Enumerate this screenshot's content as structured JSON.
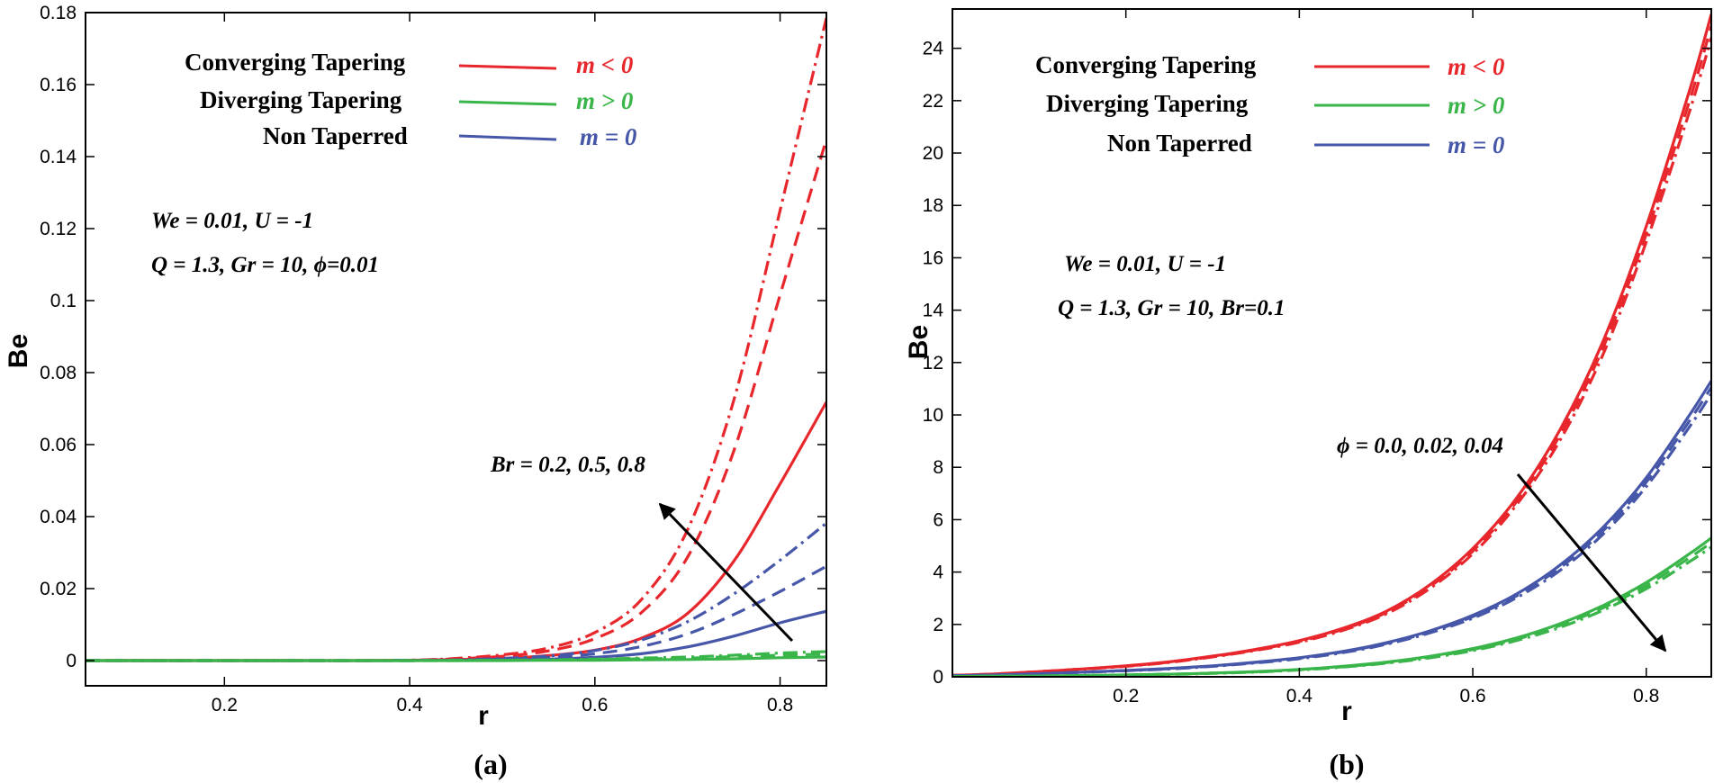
{
  "colors": {
    "red": "#e8272d",
    "green": "#39b54a",
    "blue": "#4656a8"
  },
  "chart_data": [
    {
      "type": "line",
      "panel": "(a)",
      "xlabel": "r",
      "ylabel": "Be",
      "xlim": [
        0.05,
        0.85
      ],
      "ylim": [
        -0.007,
        0.18
      ],
      "xticks": [
        "0.2",
        "0.4",
        "0.6",
        "0.8"
      ],
      "yticks": [
        "0",
        "0.02",
        "0.04",
        "0.06",
        "0.08",
        "0.1",
        "0.12",
        "0.14",
        "0.16",
        "0.18"
      ],
      "legend": [
        {
          "label": "Converging Tapering",
          "m": "m < 0",
          "color": "#e8272d"
        },
        {
          "label": "Diverging Tapering",
          "m": "m > 0",
          "color": "#39b54a"
        },
        {
          "label": "Non Taperred",
          "m": "m = 0",
          "color": "#4656a8"
        }
      ],
      "params": [
        "We = 0.01, U = -1",
        "Q = 1.3, Gr = 10, ϕ=0.01"
      ],
      "arrow_label": "Br = 0.2, 0.5, 0.8",
      "x": [
        0.05,
        0.1,
        0.15,
        0.2,
        0.25,
        0.3,
        0.35,
        0.4,
        0.45,
        0.5,
        0.55,
        0.6,
        0.65,
        0.7,
        0.75,
        0.8,
        0.85
      ],
      "series": [
        {
          "name": "Converging Tapering, Br = 0.2",
          "color": "#e8272d",
          "dash": "solid",
          "values": [
            0,
            0,
            0,
            0,
            0,
            0,
            0,
            0.0001,
            0.0003,
            0.0006,
            0.0014,
            0.0029,
            0.0062,
            0.0131,
            0.0276,
            0.0491,
            0.0718
          ]
        },
        {
          "name": "Converging Tapering, Br = 0.5",
          "color": "#e8272d",
          "dash": "dash",
          "values": [
            0,
            0,
            0,
            0,
            0,
            0,
            0,
            0.0001,
            0.0005,
            0.0012,
            0.0027,
            0.0061,
            0.0133,
            0.0287,
            0.0582,
            0.1016,
            0.1448
          ]
        },
        {
          "name": "Converging Tapering, Br = 0.8",
          "color": "#e8272d",
          "dash": "dashdot",
          "values": [
            0,
            0,
            0,
            0,
            0,
            0,
            0,
            0.0001,
            0.0006,
            0.0016,
            0.0035,
            0.0078,
            0.0169,
            0.0363,
            0.0723,
            0.1251,
            0.1785
          ]
        },
        {
          "name": "Non Taperred, Br = 0.2",
          "color": "#4656a8",
          "dash": "solid",
          "values": [
            0,
            0,
            0,
            0,
            0,
            0,
            0,
            0,
            0.0001,
            0.0002,
            0.0004,
            0.0009,
            0.0019,
            0.0038,
            0.0068,
            0.0105,
            0.0137
          ]
        },
        {
          "name": "Non Taperred, Br = 0.5",
          "color": "#4656a8",
          "dash": "dash",
          "values": [
            0,
            0,
            0,
            0,
            0,
            0,
            0,
            0,
            0.0001,
            0.0004,
            0.0009,
            0.0019,
            0.0039,
            0.0074,
            0.0128,
            0.0192,
            0.0262
          ]
        },
        {
          "name": "Non Taperred, Br = 0.8",
          "color": "#4656a8",
          "dash": "dashdot",
          "values": [
            0,
            0,
            0,
            0,
            0,
            0,
            0,
            0.0001,
            0.0002,
            0.0006,
            0.0013,
            0.0028,
            0.0057,
            0.0108,
            0.0185,
            0.0279,
            0.0382
          ]
        },
        {
          "name": "Diverging Tapering, Br = 0.2",
          "color": "#39b54a",
          "dash": "solid",
          "values": [
            0,
            0,
            0,
            0,
            0,
            0,
            0,
            0,
            0,
            0,
            0.0001,
            0.0001,
            0.0002,
            0.0003,
            0.0005,
            0.0008,
            0.001
          ]
        },
        {
          "name": "Diverging Tapering, Br = 0.5",
          "color": "#39b54a",
          "dash": "dash",
          "values": [
            0,
            0,
            0,
            0,
            0,
            0,
            0,
            0,
            0,
            0.0001,
            0.0002,
            0.0003,
            0.0005,
            0.0007,
            0.0011,
            0.0015,
            0.0018
          ]
        },
        {
          "name": "Diverging Tapering, Br = 0.8",
          "color": "#39b54a",
          "dash": "dashdot",
          "values": [
            0,
            0,
            0,
            0,
            0,
            0,
            0,
            0,
            0.0001,
            0.0001,
            0.0002,
            0.0004,
            0.0007,
            0.001,
            0.0015,
            0.0021,
            0.0025
          ]
        }
      ]
    },
    {
      "type": "line",
      "panel": "(b)",
      "xlabel": "r",
      "ylabel": "Be",
      "xlim": [
        0,
        0.875
      ],
      "ylim": [
        0,
        25.5
      ],
      "xticks": [
        "0.2",
        "0.4",
        "0.6",
        "0.8"
      ],
      "yticks": [
        "0",
        "2",
        "4",
        "6",
        "8",
        "10",
        "12",
        "14",
        "16",
        "18",
        "20",
        "22",
        "24"
      ],
      "legend": [
        {
          "label": "Converging Tapering",
          "m": "m < 0",
          "color": "#e8272d"
        },
        {
          "label": "Diverging Tapering",
          "m": "m > 0",
          "color": "#39b54a"
        },
        {
          "label": "Non Taperred",
          "m": "m = 0",
          "color": "#4656a8"
        }
      ],
      "params": [
        "We = 0.01, U = -1",
        "Q = 1.3, Gr = 10, Br=0.1"
      ],
      "arrow_label": "ϕ = 0.0, 0.02, 0.04",
      "x": [
        0,
        0.05,
        0.1,
        0.15,
        0.2,
        0.25,
        0.3,
        0.35,
        0.4,
        0.45,
        0.5,
        0.55,
        0.6,
        0.65,
        0.7,
        0.75,
        0.8,
        0.85,
        0.875
      ],
      "series": [
        {
          "name": "Converging Tapering, ϕ = 0.0",
          "color": "#e8272d",
          "dash": "solid",
          "values": [
            0.05,
            0.11,
            0.2,
            0.3,
            0.42,
            0.57,
            0.79,
            1.05,
            1.38,
            1.85,
            2.5,
            3.5,
            4.9,
            6.8,
            9.4,
            12.8,
            17.2,
            22.4,
            25.3
          ]
        },
        {
          "name": "Converging Tapering, ϕ = 0.02",
          "color": "#e8272d",
          "dash": "dash",
          "values": [
            0.05,
            0.11,
            0.2,
            0.3,
            0.41,
            0.56,
            0.77,
            1.03,
            1.35,
            1.81,
            2.45,
            3.43,
            4.8,
            6.67,
            9.2,
            12.55,
            16.9,
            22.0,
            24.85
          ]
        },
        {
          "name": "Converging Tapering, ϕ = 0.04",
          "color": "#e8272d",
          "dash": "dashdot",
          "values": [
            0.05,
            0.1,
            0.19,
            0.29,
            0.4,
            0.55,
            0.76,
            1.01,
            1.32,
            1.77,
            2.4,
            3.36,
            4.7,
            6.55,
            9.0,
            12.3,
            16.6,
            21.6,
            24.4
          ]
        },
        {
          "name": "Non Taperred, ϕ = 0.0",
          "color": "#4656a8",
          "dash": "solid",
          "values": [
            0.04,
            0.07,
            0.12,
            0.18,
            0.24,
            0.32,
            0.42,
            0.56,
            0.73,
            0.97,
            1.3,
            1.75,
            2.35,
            3.15,
            4.25,
            5.7,
            7.6,
            10.0,
            11.3
          ]
        },
        {
          "name": "Non Taperred, ϕ = 0.02",
          "color": "#4656a8",
          "dash": "dash",
          "values": [
            0.04,
            0.07,
            0.12,
            0.18,
            0.24,
            0.31,
            0.41,
            0.55,
            0.71,
            0.95,
            1.27,
            1.71,
            2.3,
            3.08,
            4.15,
            5.57,
            7.43,
            9.78,
            11.05
          ]
        },
        {
          "name": "Non Taperred, ϕ = 0.04",
          "color": "#4656a8",
          "dash": "dashdot",
          "values": [
            0.04,
            0.07,
            0.11,
            0.17,
            0.23,
            0.3,
            0.4,
            0.53,
            0.69,
            0.92,
            1.24,
            1.67,
            2.24,
            3.01,
            4.05,
            5.44,
            7.26,
            9.55,
            10.8
          ]
        },
        {
          "name": "Diverging Tapering, ϕ = 0.0",
          "color": "#39b54a",
          "dash": "solid",
          "values": [
            0.01,
            0.02,
            0.03,
            0.05,
            0.07,
            0.1,
            0.14,
            0.2,
            0.28,
            0.4,
            0.56,
            0.78,
            1.08,
            1.48,
            2.02,
            2.72,
            3.6,
            4.7,
            5.3
          ]
        },
        {
          "name": "Diverging Tapering, ϕ = 0.02",
          "color": "#39b54a",
          "dash": "dash",
          "values": [
            0.01,
            0.02,
            0.03,
            0.05,
            0.07,
            0.1,
            0.14,
            0.19,
            0.27,
            0.38,
            0.54,
            0.75,
            1.04,
            1.43,
            1.95,
            2.63,
            3.48,
            4.55,
            5.12
          ]
        },
        {
          "name": "Diverging Tapering, ϕ = 0.04",
          "color": "#39b54a",
          "dash": "dashdot",
          "values": [
            0.01,
            0.02,
            0.03,
            0.05,
            0.07,
            0.09,
            0.13,
            0.18,
            0.26,
            0.37,
            0.52,
            0.72,
            1.0,
            1.38,
            1.88,
            2.54,
            3.36,
            4.4,
            4.95
          ]
        }
      ]
    }
  ]
}
